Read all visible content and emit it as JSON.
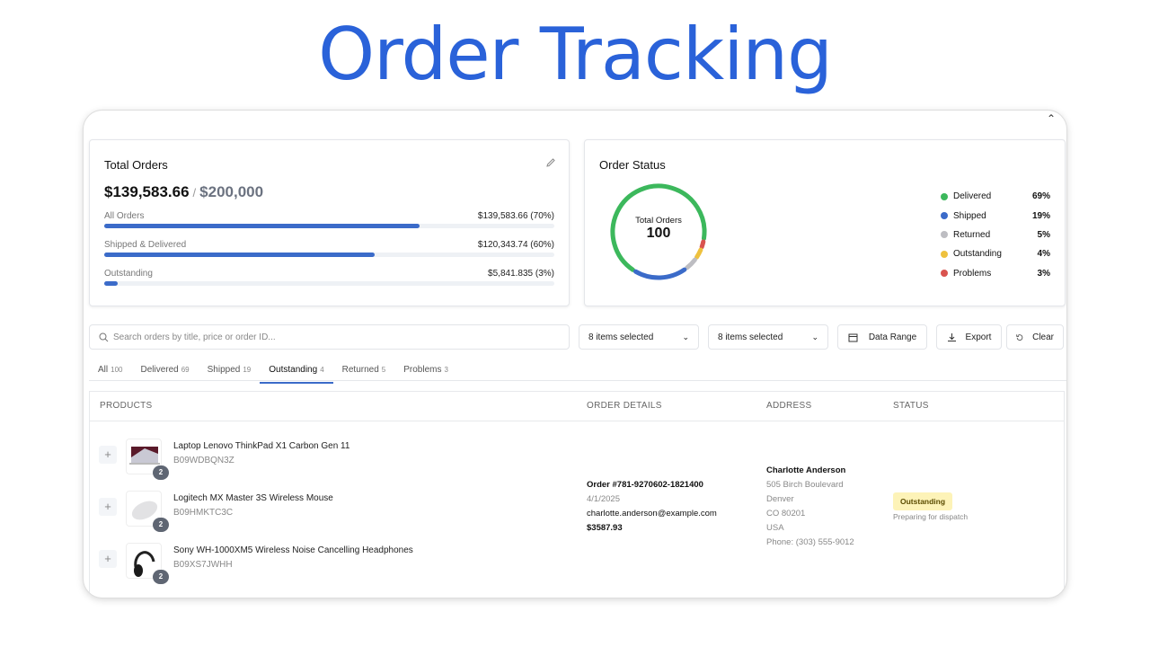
{
  "page_title": "Order Tracking",
  "total_orders_card": {
    "title": "Total Orders",
    "current": "$139,583.66",
    "separator": "/",
    "goal": "$200,000",
    "rows": [
      {
        "label": "All Orders",
        "value": "$139,583.66 (70%)",
        "percent": 70
      },
      {
        "label": "Shipped & Delivered",
        "value": "$120,343.74 (60%)",
        "percent": 60
      },
      {
        "label": "Outstanding",
        "value": "$5,841.835 (3%)",
        "percent": 3
      }
    ]
  },
  "order_status_card": {
    "title": "Order Status",
    "center_label": "Total Orders",
    "center_value": "100",
    "segments": [
      {
        "label": "Delivered",
        "percent_label": "69%",
        "value": 69,
        "color": "#3cb85c"
      },
      {
        "label": "Shipped",
        "percent_label": "19%",
        "value": 19,
        "color": "#3b6bc9"
      },
      {
        "label": "Returned",
        "percent_label": "5%",
        "value": 5,
        "color": "#bdbdc2"
      },
      {
        "label": "Outstanding",
        "percent_label": "4%",
        "value": 4,
        "color": "#eec13e"
      },
      {
        "label": "Problems",
        "percent_label": "3%",
        "value": 3,
        "color": "#d9534f"
      }
    ]
  },
  "toolbar": {
    "search_placeholder": "Search orders by title, price or order ID...",
    "filter1": "8 items selected",
    "filter2": "8 items selected",
    "date_range": "Data Range",
    "export": "Export",
    "clear": "Clear"
  },
  "tabs": [
    {
      "label": "All",
      "count": "100"
    },
    {
      "label": "Delivered",
      "count": "69"
    },
    {
      "label": "Shipped",
      "count": "19"
    },
    {
      "label": "Outstanding",
      "count": "4",
      "active": true
    },
    {
      "label": "Returned",
      "count": "5"
    },
    {
      "label": "Problems",
      "count": "3"
    }
  ],
  "table": {
    "headers": [
      "PRODUCTS",
      "ORDER DETAILS",
      "ADDRESS",
      "STATUS"
    ],
    "products": [
      {
        "name": "Laptop Lenovo ThinkPad X1 Carbon Gen 11",
        "sku": "B09WDBQN3Z",
        "qty": "2"
      },
      {
        "name": "Logitech MX Master 3S Wireless Mouse",
        "sku": "B09HMKTC3C",
        "qty": "2"
      },
      {
        "name": "Sony WH-1000XM5 Wireless Noise Cancelling Headphones",
        "sku": "B09XS7JWHH",
        "qty": "2"
      }
    ],
    "order": {
      "id": "Order #781-9270602-1821400",
      "date": "4/1/2025",
      "email": "charlotte.anderson@example.com",
      "total": "$3587.93"
    },
    "address": {
      "name": "Charlotte Anderson",
      "street": "505 Birch Boulevard",
      "city": "Denver",
      "state_zip": "CO 80201",
      "country": "USA",
      "phone": "Phone: (303) 555-9012"
    },
    "status": {
      "badge": "Outstanding",
      "note": "Preparing for dispatch"
    }
  }
}
